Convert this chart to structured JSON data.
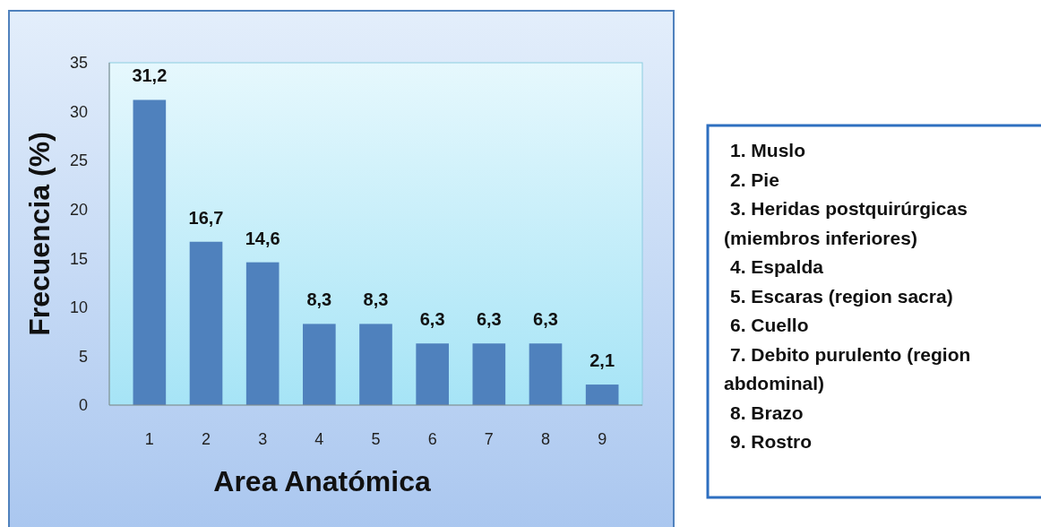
{
  "chart_data": {
    "type": "bar",
    "xlabel": "Area Anatómica",
    "ylabel": "Frecuencia (%)",
    "categories": [
      "1",
      "2",
      "3",
      "4",
      "5",
      "6",
      "7",
      "8",
      "9"
    ],
    "values": [
      31.2,
      16.7,
      14.6,
      8.3,
      8.3,
      6.3,
      6.3,
      6.3,
      2.1
    ],
    "value_labels": [
      "31,2",
      "16,7",
      "14,6",
      "8,3",
      "8,3",
      "6,3",
      "6,3",
      "6,3",
      "2,1"
    ],
    "color": "#4f81bd",
    "ylim": [
      0,
      35
    ],
    "yticks": [
      0,
      5,
      10,
      15,
      20,
      25,
      30,
      35
    ],
    "grid": false,
    "annotations": [
      "1. Muslo",
      "2. Pie",
      "3. Heridas postquirúrgicas (miembros inferiores)",
      "4. Espalda",
      "5. Escaras (region sacra)",
      "6. Cuello",
      "7. Debito purulento (region abdominal)",
      "8. Brazo",
      "9. Rostro"
    ]
  }
}
